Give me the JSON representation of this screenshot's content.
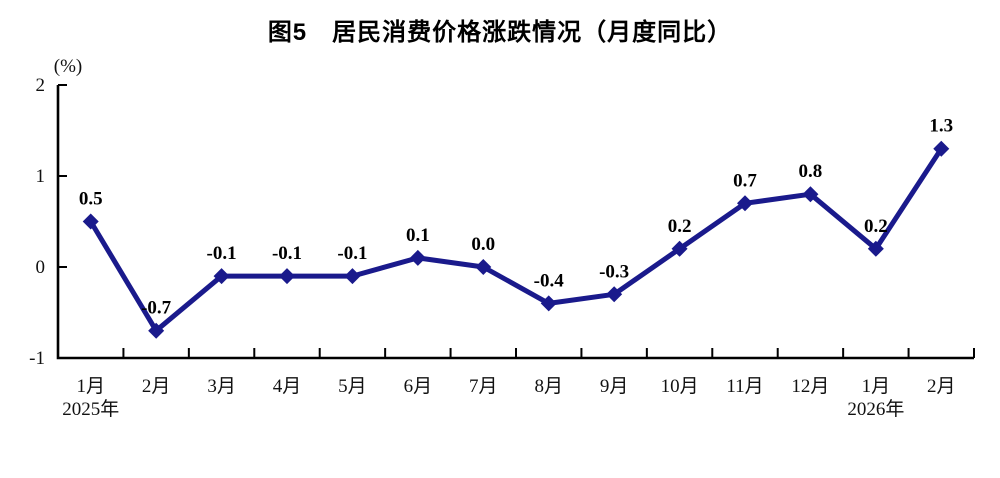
{
  "chart_data": {
    "type": "line",
    "title": "图5　居民消费价格涨跌情况（月度同比）",
    "ylabel": "(%)",
    "categories": [
      "1月",
      "2月",
      "3月",
      "4月",
      "5月",
      "6月",
      "7月",
      "8月",
      "9月",
      "10月",
      "11月",
      "12月",
      "1月",
      "2月"
    ],
    "year_labels": [
      {
        "index": 0,
        "label": "2025年"
      },
      {
        "index": 12,
        "label": "2026年"
      }
    ],
    "values": [
      0.5,
      -0.7,
      -0.1,
      -0.1,
      -0.1,
      0.1,
      0.0,
      -0.4,
      -0.3,
      0.2,
      0.7,
      0.8,
      0.2,
      1.3
    ],
    "point_labels": [
      "0.5",
      "-0.7",
      "-0.1",
      "-0.1",
      "-0.1",
      "0.1",
      "0.0",
      "-0.4",
      "-0.3",
      "0.2",
      "0.7",
      "0.8",
      "0.2",
      "1.3"
    ],
    "yticks": [
      {
        "value": 2,
        "label": "2"
      },
      {
        "value": 1,
        "label": "1"
      },
      {
        "value": 0,
        "label": "0"
      },
      {
        "value": -1,
        "label": "-1"
      }
    ],
    "ylim": [
      -1,
      2
    ],
    "line_color": "#1a1a8c",
    "axis_color": "#000000",
    "marker": "diamond",
    "grid": false,
    "legend": false
  }
}
